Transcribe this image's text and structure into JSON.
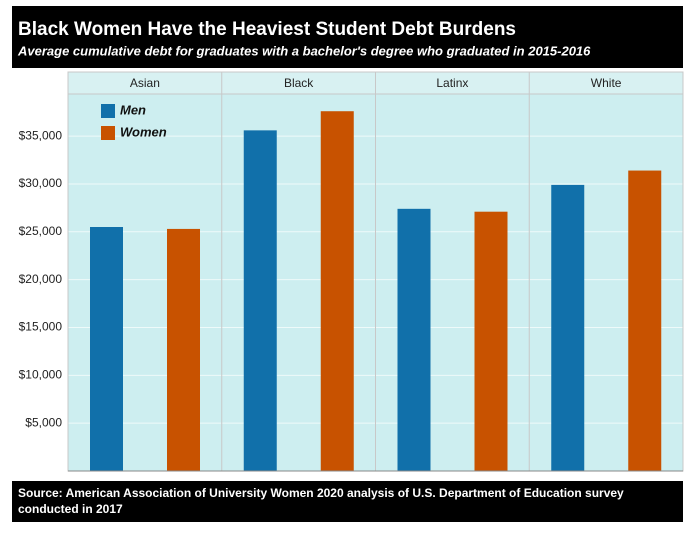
{
  "chart_data": {
    "type": "bar",
    "title": "Black Women Have the Heaviest Student Debt Burdens",
    "subtitle": "Average cumulative debt for graduates with a bachelor's degree who graduated in 2015-2016",
    "source": "Source: American Association of University Women 2020 analysis of U.S. Department of Education survey conducted in 2017",
    "categories": [
      "Asian",
      "Black",
      "Latinx",
      "White"
    ],
    "series": [
      {
        "name": "Men",
        "color": "#1170aa",
        "values": [
          25500,
          35600,
          27400,
          29900
        ]
      },
      {
        "name": "Women",
        "color": "#c85200",
        "values": [
          25300,
          37600,
          27100,
          31400
        ]
      }
    ],
    "ylim": [
      0,
      39400
    ],
    "yticks": [
      {
        "value": 5000,
        "label": "$5,000"
      },
      {
        "value": 10000,
        "label": "$10,000"
      },
      {
        "value": 15000,
        "label": "$15,000"
      },
      {
        "value": 20000,
        "label": "$20,000"
      },
      {
        "value": 25000,
        "label": "$25,000"
      },
      {
        "value": 30000,
        "label": "$30,000"
      },
      {
        "value": 35000,
        "label": "$35,000"
      }
    ],
    "grid": true,
    "legend": "top-left"
  }
}
